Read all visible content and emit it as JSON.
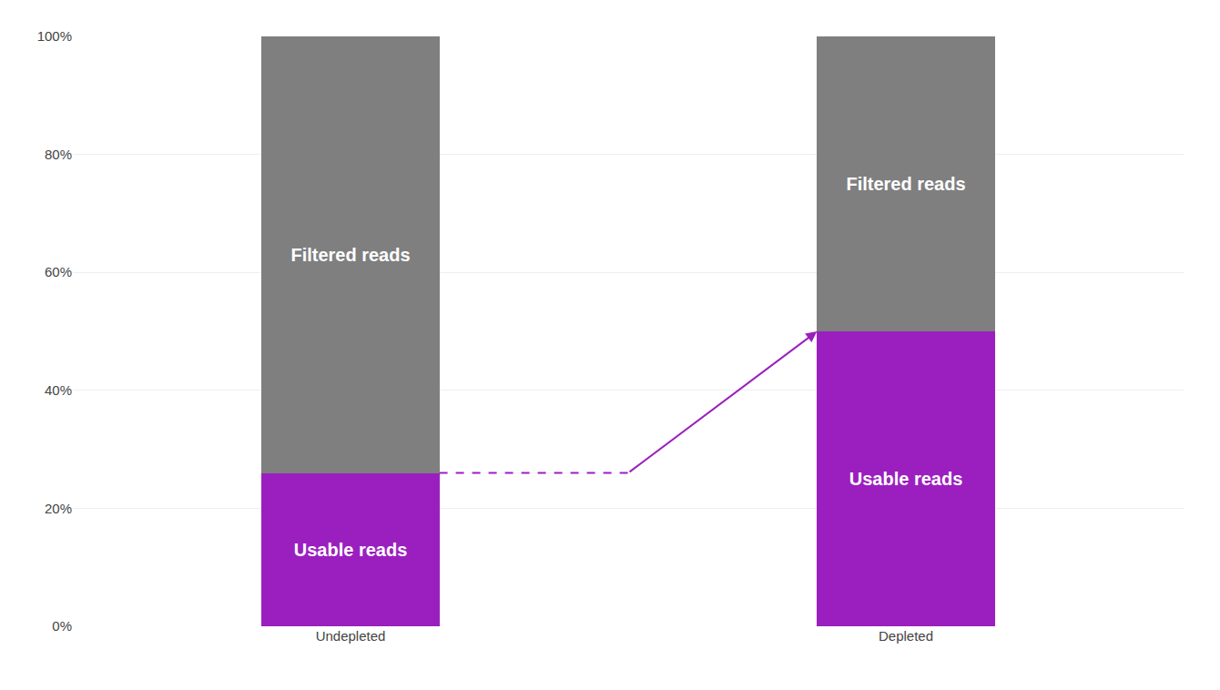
{
  "chart_data": {
    "type": "bar",
    "categories": [
      "Undepleted",
      "Depleted"
    ],
    "series": [
      {
        "name": "Usable reads",
        "color": "#9B1FBF",
        "values": [
          26,
          50
        ]
      },
      {
        "name": "Filtered reads",
        "color": "#7F7F7F",
        "values": [
          74,
          50
        ]
      }
    ],
    "stacked": true,
    "ylim": [
      0,
      100
    ],
    "yticks": [
      {
        "value": 0,
        "label": "0%"
      },
      {
        "value": 20,
        "label": "20%"
      },
      {
        "value": 40,
        "label": "40%"
      },
      {
        "value": 60,
        "label": "60%"
      },
      {
        "value": 80,
        "label": "80%"
      },
      {
        "value": 100,
        "label": "100%"
      }
    ],
    "grid": true
  }
}
